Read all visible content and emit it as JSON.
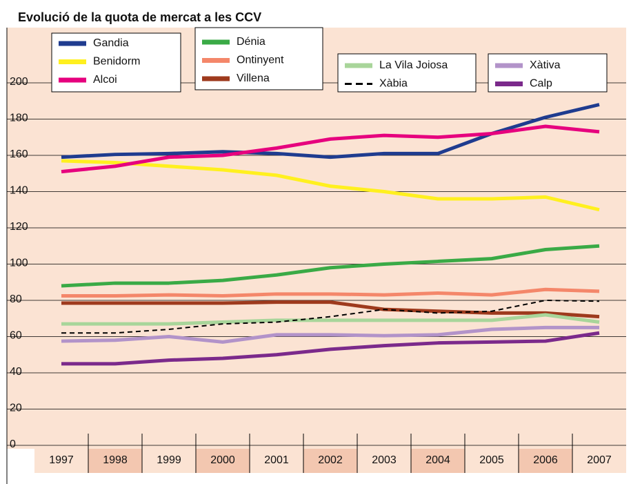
{
  "chart_data": {
    "type": "line",
    "title": "Evolució de la quota de mercat a les CCV",
    "categories": [
      "1997",
      "1998",
      "1999",
      "2000",
      "2001",
      "2002",
      "2003",
      "2004",
      "2005",
      "2006",
      "2007"
    ],
    "ylim": [
      0,
      200
    ],
    "yticks": [
      0,
      20,
      40,
      60,
      80,
      100,
      120,
      140,
      160,
      180,
      200
    ],
    "grid": true,
    "series": [
      {
        "name": "Gandia",
        "color": "#1f3c8f",
        "values": [
          159,
          160.5,
          161,
          162,
          161,
          159,
          161,
          161,
          172,
          181,
          188
        ]
      },
      {
        "name": "Benidorm",
        "color": "#fff01f",
        "values": [
          157,
          156,
          154,
          152,
          149,
          143,
          140,
          136,
          136,
          137,
          130
        ]
      },
      {
        "name": "Alcoi",
        "color": "#e6007e",
        "values": [
          151,
          154,
          159,
          160,
          164,
          169,
          171,
          170,
          172,
          176,
          173
        ]
      },
      {
        "name": "Dénia",
        "color": "#3aaa46",
        "values": [
          88,
          89.5,
          89.5,
          91,
          94,
          98,
          100,
          101.5,
          103,
          108,
          110
        ]
      },
      {
        "name": "Ontinyent",
        "color": "#f4876a",
        "values": [
          82.5,
          82.5,
          83,
          82.5,
          83.5,
          83.5,
          83,
          84,
          83,
          86,
          85
        ]
      },
      {
        "name": "Villena",
        "color": "#9e3a1d",
        "values": [
          78.5,
          78.5,
          78.5,
          78.5,
          79,
          79,
          75,
          74,
          73,
          73,
          71
        ]
      },
      {
        "name": "La Vila Joiosa",
        "color": "#a8d59a",
        "values": [
          67,
          67,
          67,
          68,
          69,
          69,
          69,
          69,
          69,
          72,
          68
        ]
      },
      {
        "name": "Xàbia",
        "color": "#000000",
        "style": "dashed",
        "values": [
          62,
          62,
          64,
          67,
          68,
          71,
          75,
          73,
          74,
          80,
          79.5
        ]
      },
      {
        "name": "Xàtiva",
        "color": "#b293c9",
        "values": [
          57.5,
          58,
          60,
          57,
          61,
          61,
          60.5,
          61,
          64,
          65,
          65
        ]
      },
      {
        "name": "Calp",
        "color": "#7b2a8b",
        "values": [
          45,
          45,
          47,
          48,
          50,
          53,
          55,
          56.5,
          57,
          57.5,
          62
        ]
      }
    ]
  }
}
